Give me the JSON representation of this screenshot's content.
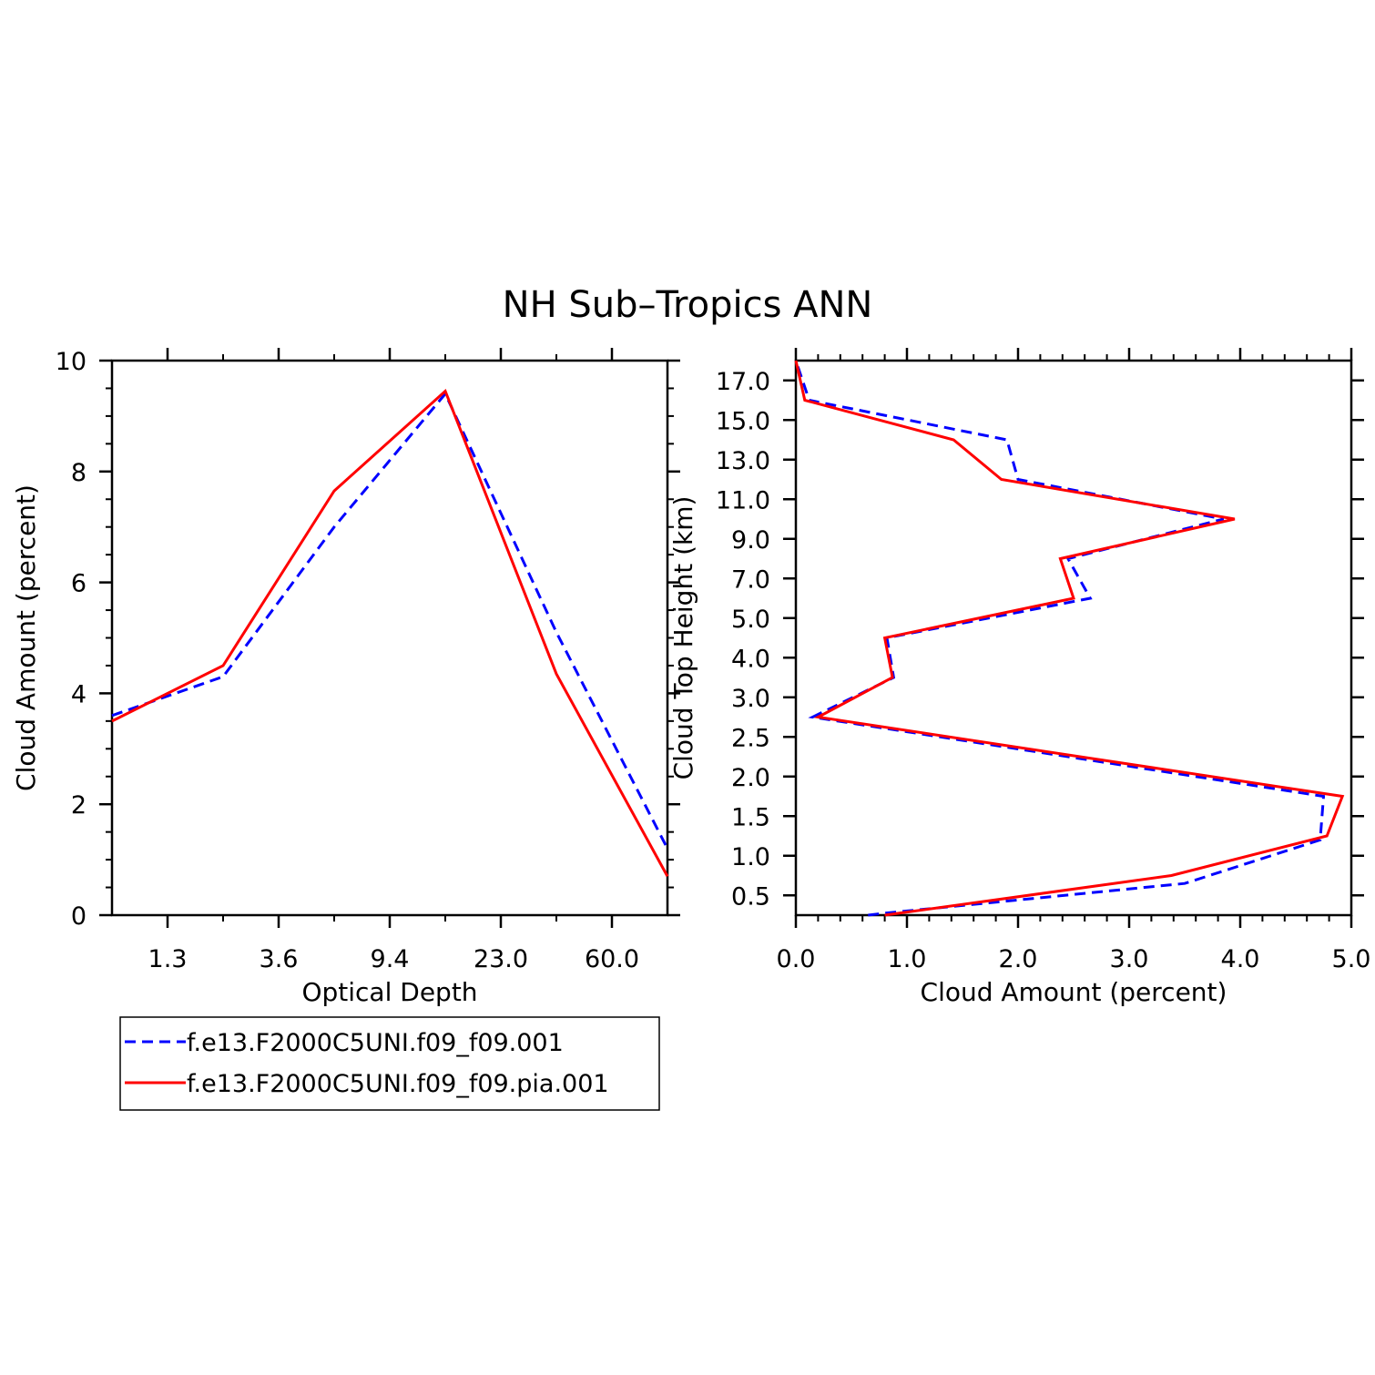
{
  "title": "NH Sub–Tropics ANN",
  "colors": {
    "series_a": "#0000ff",
    "series_b": "#ff0000",
    "axes": "#000000"
  },
  "legend": [
    {
      "name": "f.e13.F2000C5UNI.f09_f09.001",
      "style": "dashed",
      "color": "#0000ff"
    },
    {
      "name": "f.e13.F2000C5UNI.f09_f09.pia.001",
      "style": "solid",
      "color": "#ff0000"
    }
  ],
  "chart_data": [
    {
      "type": "line",
      "xlabel": "Optical Depth",
      "ylabel": "Cloud Amount (percent)",
      "x": [
        1,
        2,
        3,
        4,
        5,
        6
      ],
      "xlim": [
        0.5,
        5.5
      ],
      "ylim": [
        0,
        10
      ],
      "xticks": [
        {
          "pos": 1,
          "label": "1.3"
        },
        {
          "pos": 2,
          "label": "3.6"
        },
        {
          "pos": 3,
          "label": "9.4"
        },
        {
          "pos": 4,
          "label": "23.0"
        },
        {
          "pos": 5,
          "label": "60.0"
        }
      ],
      "yticks": [
        0,
        2,
        4,
        6,
        8,
        10
      ],
      "series": [
        {
          "name": "f.e13.F2000C5UNI.f09_f09.001",
          "style": "dashed",
          "points": [
            [
              0.5,
              3.6
            ],
            [
              1.5,
              4.3
            ],
            [
              2.5,
              7.0
            ],
            [
              3.5,
              9.4
            ],
            [
              4.5,
              5.1
            ],
            [
              5.5,
              1.2
            ]
          ]
        },
        {
          "name": "f.e13.F2000C5UNI.f09_f09.pia.001",
          "style": "solid",
          "points": [
            [
              0.5,
              3.5
            ],
            [
              1.5,
              4.5
            ],
            [
              2.5,
              7.65
            ],
            [
              3.5,
              9.45
            ],
            [
              4.5,
              4.35
            ],
            [
              5.5,
              0.7
            ]
          ]
        }
      ]
    },
    {
      "type": "line",
      "xlabel": "Cloud Amount (percent)",
      "ylabel": "Cloud Top Height (km)",
      "xlim": [
        0.0,
        5.0
      ],
      "ylim": [
        0,
        14
      ],
      "xticks": [
        {
          "pos": 0.0,
          "label": "0.0"
        },
        {
          "pos": 1.0,
          "label": "1.0"
        },
        {
          "pos": 2.0,
          "label": "2.0"
        },
        {
          "pos": 3.0,
          "label": "3.0"
        },
        {
          "pos": 4.0,
          "label": "4.0"
        },
        {
          "pos": 5.0,
          "label": "5.0"
        }
      ],
      "yticks": [
        {
          "pos": 0.5,
          "label": "0.5"
        },
        {
          "pos": 1.5,
          "label": "1.0"
        },
        {
          "pos": 2.5,
          "label": "1.5"
        },
        {
          "pos": 3.5,
          "label": "2.0"
        },
        {
          "pos": 4.5,
          "label": "2.5"
        },
        {
          "pos": 5.5,
          "label": "3.0"
        },
        {
          "pos": 6.5,
          "label": "4.0"
        },
        {
          "pos": 7.5,
          "label": "5.0"
        },
        {
          "pos": 8.5,
          "label": "7.0"
        },
        {
          "pos": 9.5,
          "label": "9.0"
        },
        {
          "pos": 10.5,
          "label": "11.0"
        },
        {
          "pos": 11.5,
          "label": "13.0"
        },
        {
          "pos": 12.5,
          "label": "15.0"
        },
        {
          "pos": 13.5,
          "label": "17.0"
        }
      ],
      "series": [
        {
          "name": "f.e13.F2000C5UNI.f09_f09.001",
          "style": "dashed",
          "points": [
            [
              0.65,
              0.0
            ],
            [
              0.8,
              0.05
            ],
            [
              3.5,
              0.8
            ],
            [
              4.72,
              1.9
            ],
            [
              4.75,
              3.0
            ],
            [
              0.15,
              5.0
            ],
            [
              0.88,
              6.0
            ],
            [
              0.82,
              7.0
            ],
            [
              2.65,
              8.0
            ],
            [
              2.45,
              9.0
            ],
            [
              3.85,
              10.0
            ],
            [
              2.0,
              11.0
            ],
            [
              1.9,
              12.0
            ],
            [
              0.12,
              13.0
            ],
            [
              0.0,
              14.0
            ]
          ]
        },
        {
          "name": "f.e13.F2000C5UNI.f09_f09.pia.001",
          "style": "solid",
          "points": [
            [
              0.8,
              0.0
            ],
            [
              3.38,
              1.0
            ],
            [
              4.78,
              2.0
            ],
            [
              4.92,
              3.0
            ],
            [
              0.2,
              5.0
            ],
            [
              0.87,
              6.0
            ],
            [
              0.8,
              7.0
            ],
            [
              2.5,
              8.0
            ],
            [
              2.38,
              9.0
            ],
            [
              3.95,
              10.0
            ],
            [
              1.85,
              11.0
            ],
            [
              1.42,
              12.0
            ],
            [
              0.08,
              13.0
            ],
            [
              0.0,
              14.0
            ]
          ]
        }
      ]
    }
  ]
}
